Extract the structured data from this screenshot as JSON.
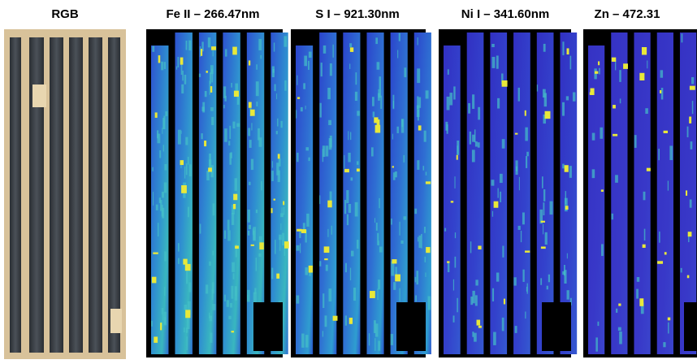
{
  "panels": [
    {
      "title": "RGB"
    },
    {
      "title": "Fe II – 266.47nm"
    },
    {
      "title": "S I – 921.30nm"
    },
    {
      "title": "Ni I – 341.60nm"
    },
    {
      "title": "Zn – 472.31"
    }
  ]
}
